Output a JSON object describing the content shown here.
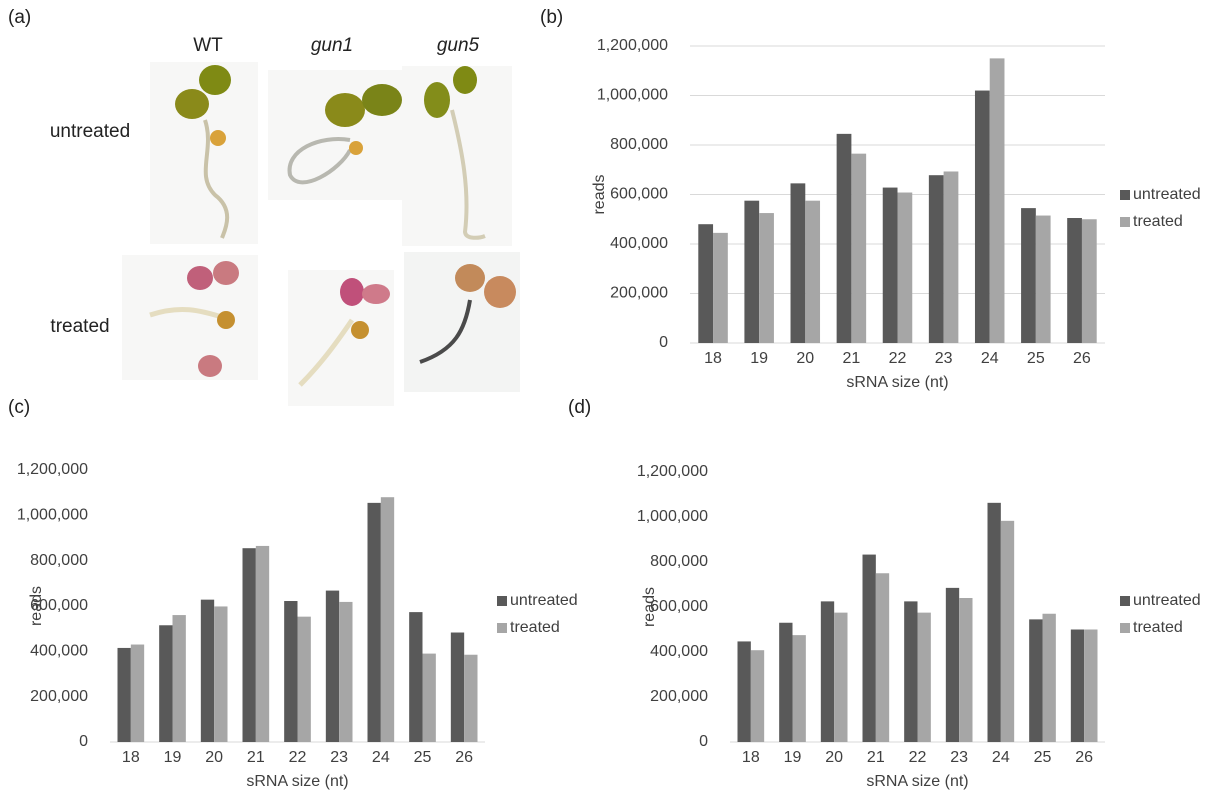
{
  "panel_a": {
    "label": "(a)",
    "columns": [
      "WT",
      "gun1",
      "gun5"
    ],
    "rows": [
      "untreated",
      "treated"
    ]
  },
  "chart_data": [
    {
      "type": "bar",
      "panel_label": "(b)",
      "x_label": "sRNA size (nt)",
      "y_label": "reads",
      "categories": [
        "18",
        "19",
        "20",
        "21",
        "22",
        "23",
        "24",
        "25",
        "26"
      ],
      "series": [
        {
          "name": "untreated",
          "color": "#595959",
          "values": [
            480000,
            575000,
            645000,
            845000,
            628000,
            678000,
            1020000,
            545000,
            505000
          ]
        },
        {
          "name": "treated",
          "color": "#a6a6a6",
          "values": [
            445000,
            525000,
            575000,
            765000,
            608000,
            693000,
            1150000,
            515000,
            500000
          ]
        }
      ],
      "ylim": [
        0,
        1200000
      ],
      "yticks": [
        0,
        {
          "value": 200000,
          "label": "200,000"
        },
        {
          "value": 400000,
          "label": "400,000"
        },
        {
          "value": 600000,
          "label": "600,000"
        },
        {
          "value": 800000,
          "label": "800,000"
        },
        {
          "value": 1000000,
          "label": "1,000,000"
        },
        {
          "value": 1200000,
          "label": "1,200,000"
        }
      ],
      "grid": true,
      "legend": "right"
    },
    {
      "type": "bar",
      "panel_label": "(c)",
      "x_label": "sRNA size (nt)",
      "y_label": "reads",
      "categories": [
        "18",
        "19",
        "20",
        "21",
        "22",
        "23",
        "24",
        "25",
        "26"
      ],
      "series": [
        {
          "name": "untreated",
          "color": "#595959",
          "values": [
            415000,
            515000,
            628000,
            855000,
            622000,
            668000,
            1055000,
            573000,
            483000
          ]
        },
        {
          "name": "treated",
          "color": "#a6a6a6",
          "values": [
            430000,
            560000,
            598000,
            865000,
            553000,
            618000,
            1080000,
            390000,
            385000
          ]
        }
      ],
      "ylim": [
        0,
        1200000
      ],
      "yticks": [
        0,
        {
          "value": 200000,
          "label": "200,000"
        },
        {
          "value": 400000,
          "label": "400,000"
        },
        {
          "value": 600000,
          "label": "600,000"
        },
        {
          "value": 800000,
          "label": "800,000"
        },
        {
          "value": 1000000,
          "label": "1,000,000"
        },
        {
          "value": 1200000,
          "label": "1,200,000"
        }
      ],
      "grid": false,
      "legend": "right"
    },
    {
      "type": "bar",
      "panel_label": "(d)",
      "x_label": "sRNA size (nt)",
      "y_label": "reads",
      "categories": [
        "18",
        "19",
        "20",
        "21",
        "22",
        "23",
        "24",
        "25",
        "26"
      ],
      "series": [
        {
          "name": "untreated",
          "color": "#595959",
          "values": [
            447000,
            530000,
            625000,
            833000,
            625000,
            685000,
            1063000,
            545000,
            500000
          ]
        },
        {
          "name": "treated",
          "color": "#a6a6a6",
          "values": [
            408000,
            475000,
            575000,
            750000,
            575000,
            640000,
            983000,
            570000,
            500000
          ]
        }
      ],
      "ylim": [
        0,
        1200000
      ],
      "yticks": [
        0,
        {
          "value": 200000,
          "label": "200,000"
        },
        {
          "value": 400000,
          "label": "400,000"
        },
        {
          "value": 600000,
          "label": "600,000"
        },
        {
          "value": 800000,
          "label": "800,000"
        },
        {
          "value": 1000000,
          "label": "1,000,000"
        },
        {
          "value": 1200000,
          "label": "1,200,000"
        }
      ],
      "grid": false,
      "legend": "right"
    }
  ]
}
